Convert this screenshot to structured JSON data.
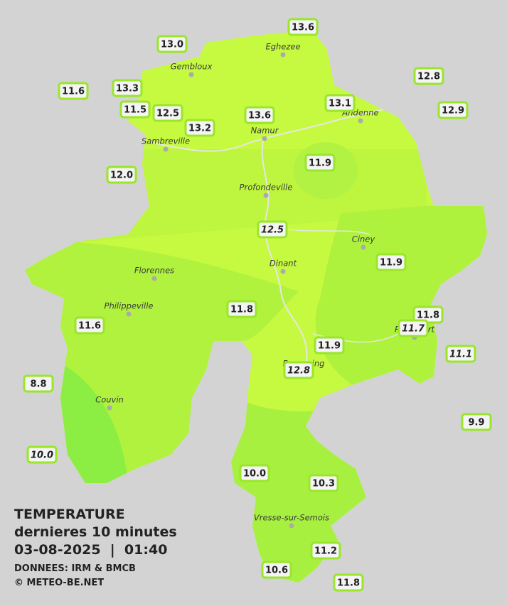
{
  "stations": [
    "13.6",
    "13.0",
    "12.8",
    "11.6",
    "13.3",
    "13.1",
    "11.5",
    "12.5",
    "13.6",
    "12.9",
    "13.2",
    "12.0",
    "11.9",
    "12.5",
    "11.9",
    "11.8",
    "11.8",
    "11.7",
    "11.6",
    "11.9",
    "11.1",
    "12.8",
    "8.8",
    "9.9",
    "10.0",
    "10.0",
    "10.3",
    "11.2",
    "10.6",
    "11.8"
  ],
  "towns": [
    "Eghezee",
    "Gembloux",
    "Andenne",
    "Namur",
    "Sambreville",
    "Profondeville",
    "Ciney",
    "Dinant",
    "Florennes",
    "Philippeville",
    "Rochefort",
    "Beauraing",
    "Couvin",
    "Vresse-sur-Semois"
  ],
  "legend": {
    "title": "TEMPERATURE",
    "subtitle": "dernieres 10 minutes",
    "datetime": "03-08-2025  |  01:40",
    "source": "DONNEES: IRM & BMCB",
    "copyright": "© METEO-BE.NET"
  }
}
